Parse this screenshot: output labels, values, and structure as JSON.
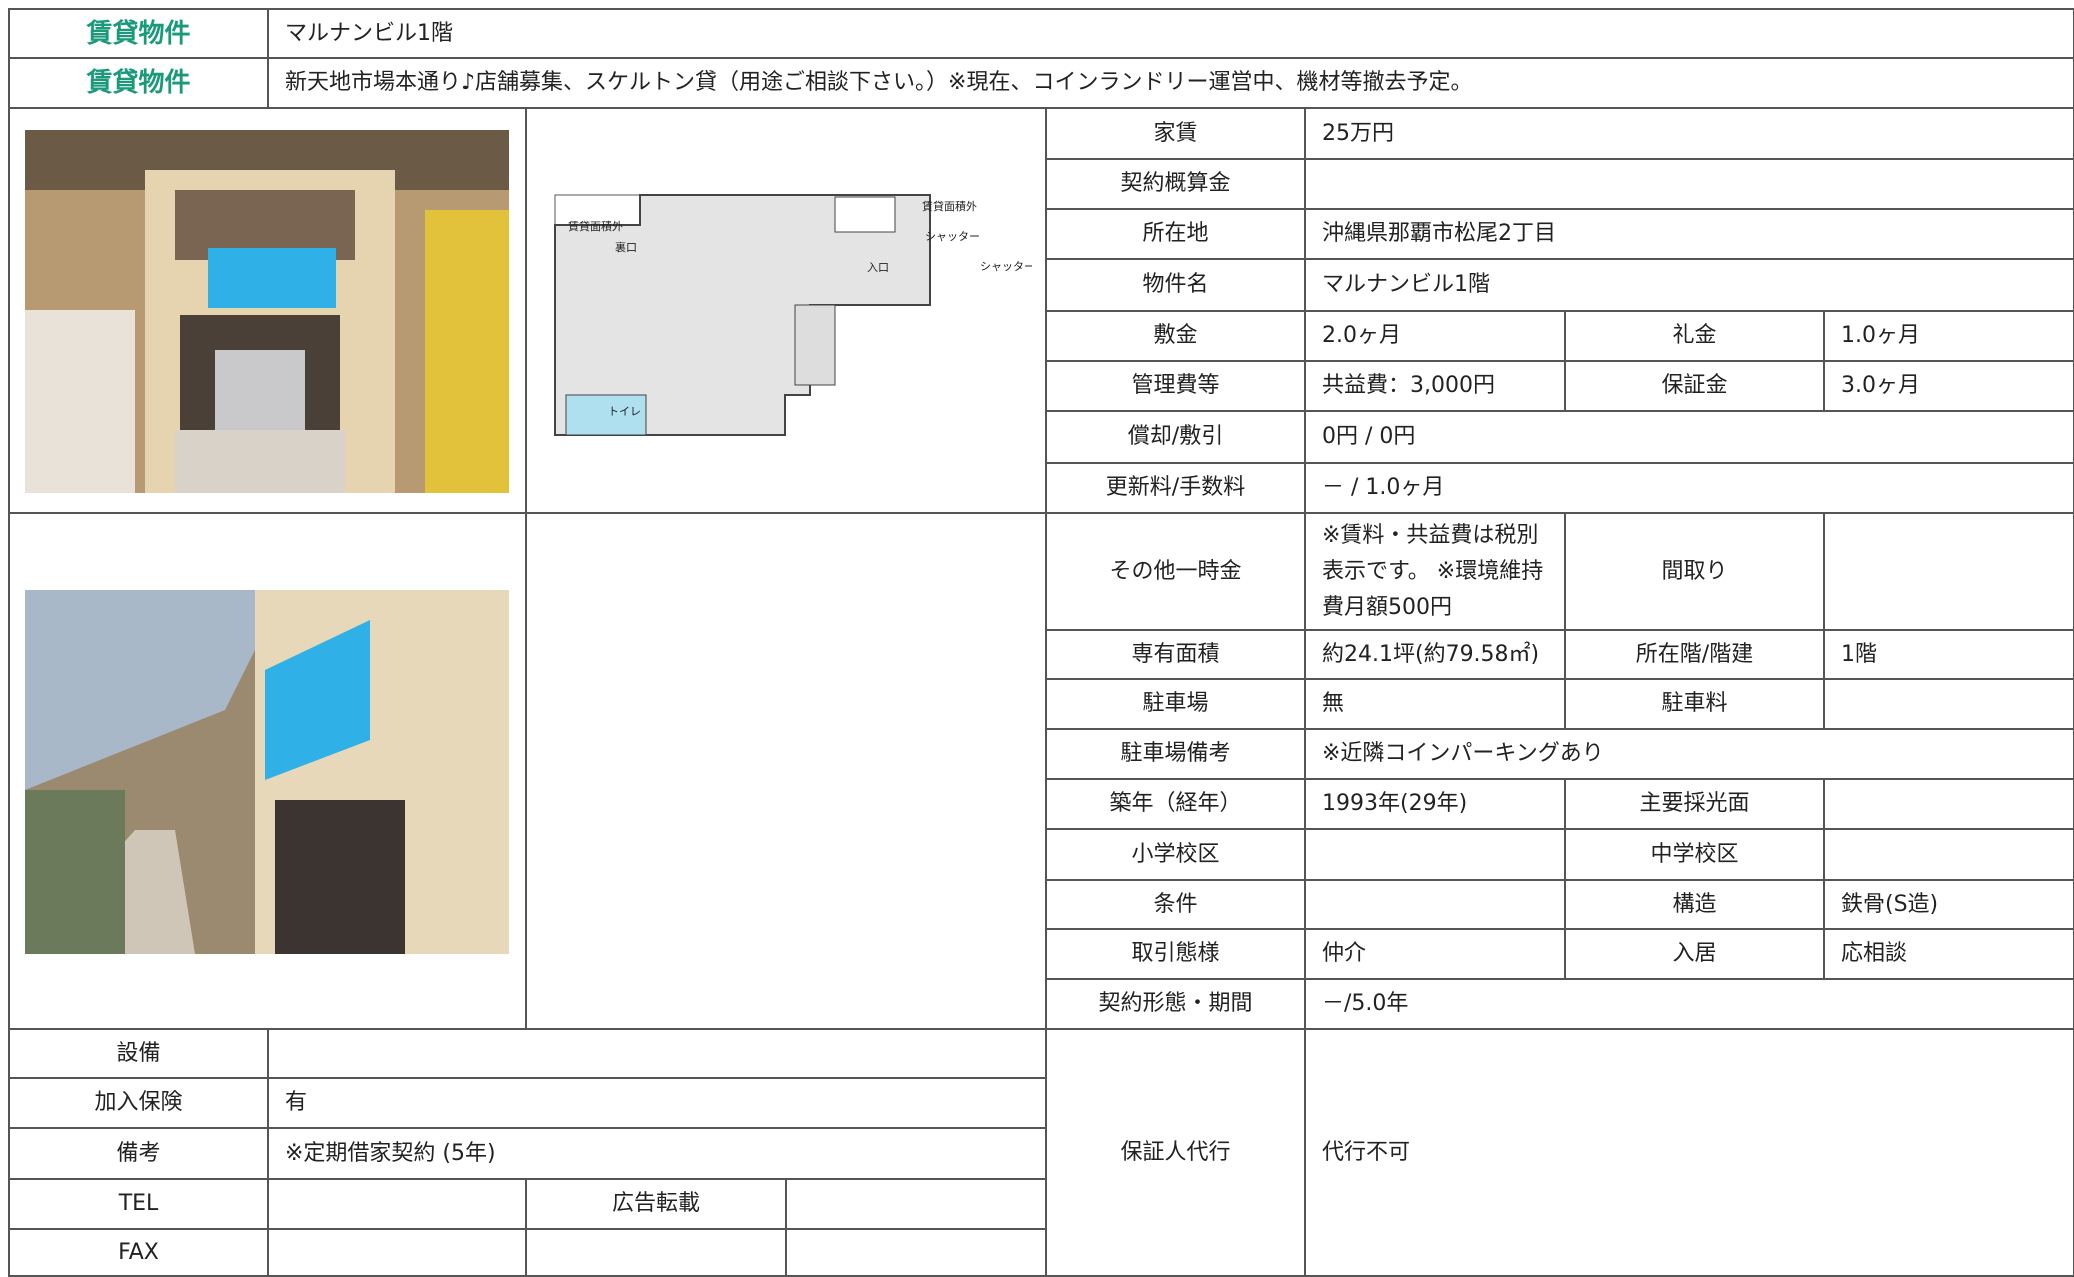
{
  "header": {
    "rows": [
      {
        "label": "賃貸物件",
        "value": "マルナンビル1階"
      },
      {
        "label": "賃貸物件",
        "value": "新天地市場本通り♪店舗募集、スケルトン貸（用途ご相談下さい。）※現在、コインランドリー運営中、機材等撤去予定。"
      }
    ]
  },
  "floor_plan": {
    "labels": [
      "賃貸面積外",
      "裏口",
      "入口",
      "賃貸面積外",
      "シャッター",
      "シャッター",
      "トイレ"
    ]
  },
  "details": {
    "rows": [
      [
        {
          "label": "家賃",
          "value": "25万円"
        }
      ],
      [
        {
          "label": "契約概算金"
        }
      ],
      [
        {
          "label": "所在地",
          "value": "沖縄県那覇市松尾2丁目"
        }
      ],
      [
        {
          "label": "物件名",
          "value": "マルナンビル1階"
        }
      ],
      [
        {
          "label": "敷金",
          "value": "2.0ヶ月"
        },
        {
          "label": "礼金",
          "value": "1.0ヶ月"
        }
      ],
      [
        {
          "label": "管理費等",
          "value": "共益費：3,000円"
        },
        {
          "label": "保証金",
          "value": "3.0ヶ月"
        }
      ],
      [
        {
          "label": "償却/敷引",
          "value": "0円 / 0円"
        }
      ],
      [
        {
          "label": "更新料/手数料",
          "value": "－ / 1.0ヶ月"
        }
      ],
      [
        {
          "label": "その他一時金",
          "value": "※賃料・共益費は税別表示です。 ※環境維持費月額500円"
        },
        {
          "label": "間取り"
        }
      ],
      [
        {
          "label": "専有面積",
          "value": "約24.1坪(約79.58㎡)"
        },
        {
          "label": "所在階/階建",
          "value": "1階"
        }
      ],
      [
        {
          "label": "駐車場",
          "value": "無"
        },
        {
          "label": "駐車料"
        }
      ],
      [
        {
          "label": "駐車場備考",
          "value": "※近隣コインパーキングあり"
        }
      ],
      [
        {
          "label": "築年（経年）",
          "value": "1993年(29年)"
        },
        {
          "label": "主要採光面"
        }
      ],
      [
        {
          "label": "小学校区"
        },
        {
          "label": "中学校区"
        }
      ],
      [
        {
          "label": "条件"
        },
        {
          "label": "構造",
          "value": "鉄骨(S造)"
        }
      ],
      [
        {
          "label": "取引態様",
          "value": "仲介"
        },
        {
          "label": "入居",
          "value": "応相談"
        }
      ],
      [
        {
          "label": "契約形態・期間",
          "value": "－/5.0年"
        }
      ],
      [
        {
          "label": "保証人代行",
          "value": "代行不可"
        }
      ]
    ]
  },
  "extras": {
    "rows": [
      {
        "label": "設備"
      },
      {
        "label": "加入保険",
        "value": "有"
      },
      {
        "label": "備考",
        "value": "※定期借家契約 (5年)"
      },
      {
        "label": "TEL",
        "label2": "広告転載"
      },
      {
        "label": "FAX"
      }
    ]
  }
}
